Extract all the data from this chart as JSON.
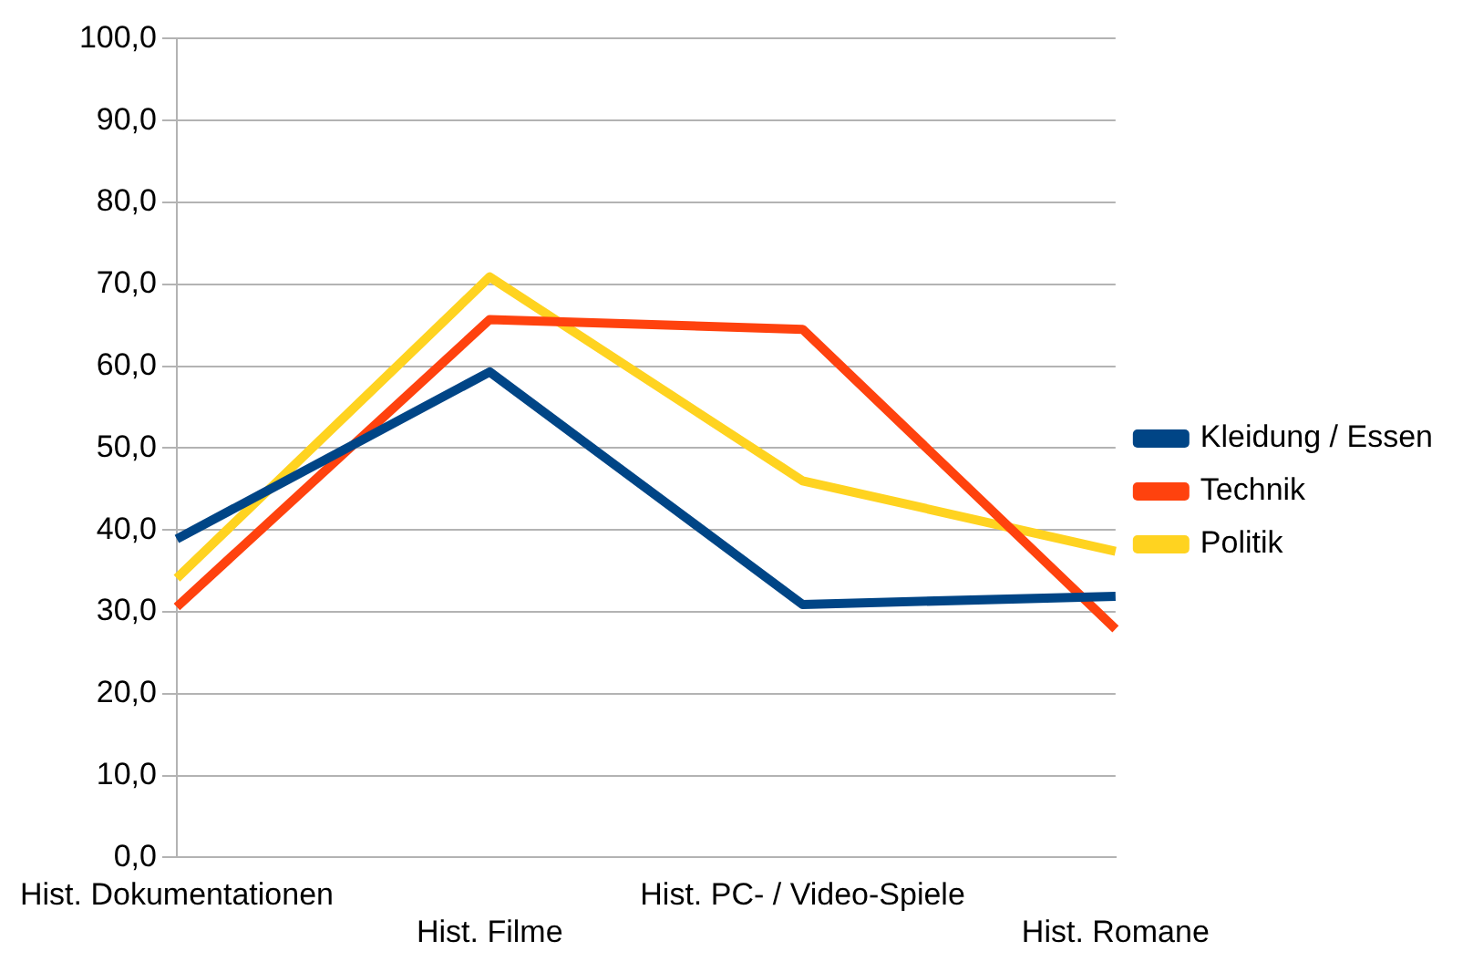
{
  "chart_data": {
    "type": "line",
    "categories": [
      "Hist. Dokumentationen",
      "Hist. Filme",
      "Hist. PC- / Video-Spiele",
      "Hist. Romane"
    ],
    "series": [
      {
        "name": "Kleidung / Essen",
        "color": "#004586",
        "values": [
          38.9,
          59.3,
          30.9,
          31.9
        ]
      },
      {
        "name": "Technik",
        "color": "#ff420e",
        "values": [
          30.6,
          65.7,
          64.5,
          27.9
        ]
      },
      {
        "name": "Politik",
        "color": "#ffd320",
        "values": [
          34.1,
          70.9,
          46.0,
          37.4
        ]
      }
    ],
    "ylim": [
      0,
      100
    ],
    "yticks": [
      {
        "value": 0,
        "label": "0,0"
      },
      {
        "value": 10,
        "label": "10,0"
      },
      {
        "value": 20,
        "label": "20,0"
      },
      {
        "value": 30,
        "label": "30,0"
      },
      {
        "value": 40,
        "label": "40,0"
      },
      {
        "value": 50,
        "label": "50,0"
      },
      {
        "value": 60,
        "label": "60,0"
      },
      {
        "value": 70,
        "label": "70,0"
      },
      {
        "value": 80,
        "label": "80,0"
      },
      {
        "value": 90,
        "label": "90,0"
      },
      {
        "value": 100,
        "label": "100,0"
      }
    ],
    "grid": "y",
    "legend": "right",
    "marker": "none",
    "line_style": "solid"
  }
}
